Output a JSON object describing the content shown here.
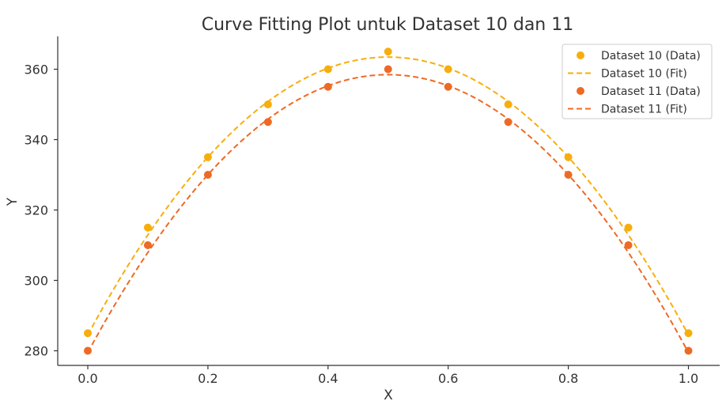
{
  "chart_data": {
    "type": "scatter",
    "title": "Curve Fitting Plot untuk Dataset 10 dan 11",
    "xlabel": "X",
    "ylabel": "Y",
    "xlim": [
      -0.05,
      1.05
    ],
    "ylim": [
      275,
      370
    ],
    "xticks": [
      "0.0",
      "0.2",
      "0.4",
      "0.6",
      "0.8",
      "1.0"
    ],
    "yticks": [
      "280",
      "300",
      "320",
      "340",
      "360"
    ],
    "grid": false,
    "legend_position": "top-right",
    "series": [
      {
        "name": "Dataset 10 (Data)",
        "kind": "points",
        "color": "#F7AE0D",
        "x": [
          0.0,
          0.1,
          0.2,
          0.3,
          0.4,
          0.5,
          0.6,
          0.7,
          0.8,
          0.9,
          1.0
        ],
        "y": [
          285,
          315,
          335,
          350,
          360,
          365,
          360,
          350,
          335,
          315,
          285
        ]
      },
      {
        "name": "Dataset 10 (Fit)",
        "kind": "line",
        "style": "dashed",
        "color": "#F7AE0D",
        "fit": {
          "model": "quadratic",
          "a": -315.8,
          "b": 315.8,
          "c": 284.5
        }
      },
      {
        "name": "Dataset 11 (Data)",
        "kind": "points",
        "color": "#EE6A24",
        "x": [
          0.0,
          0.1,
          0.2,
          0.3,
          0.4,
          0.5,
          0.6,
          0.7,
          0.8,
          0.9,
          1.0
        ],
        "y": [
          280,
          310,
          330,
          345,
          355,
          360,
          355,
          345,
          330,
          310,
          280
        ]
      },
      {
        "name": "Dataset 11 (Fit)",
        "kind": "line",
        "style": "dashed",
        "color": "#EE6A24",
        "fit": {
          "model": "quadratic",
          "a": -315.8,
          "b": 315.8,
          "c": 279.5
        }
      }
    ]
  }
}
